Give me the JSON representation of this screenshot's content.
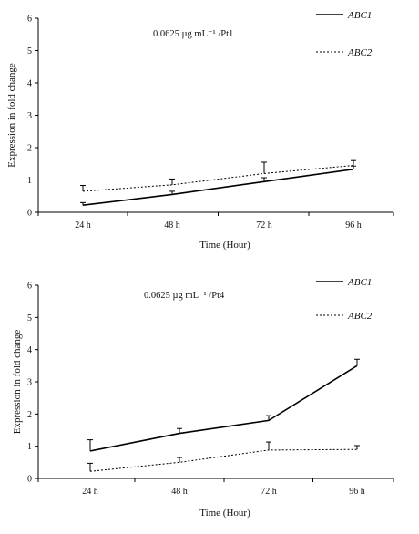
{
  "chart_data": [
    {
      "type": "line",
      "annotation": "0.0625 µg mL⁻¹ /Pt1",
      "xlabel": "Time (Hour)",
      "ylabel": "Expression in fold change",
      "categories": [
        "24 h",
        "48 h",
        "72 h",
        "96 h"
      ],
      "ylim": [
        0,
        6
      ],
      "yticks": [
        "0",
        "1",
        "2",
        "3",
        "4",
        "5",
        "6"
      ],
      "legend_position": "top-right",
      "series": [
        {
          "name": "ABC1",
          "style": "solid",
          "values": [
            0.22,
            0.55,
            0.95,
            1.33
          ],
          "errors": [
            0.08,
            0.1,
            0.12,
            0.1
          ]
        },
        {
          "name": "ABC2",
          "style": "dotted",
          "values": [
            0.65,
            0.85,
            1.2,
            1.45
          ],
          "errors": [
            0.18,
            0.18,
            0.35,
            0.15
          ]
        }
      ]
    },
    {
      "type": "line",
      "annotation": "0.0625 µg mL⁻¹ /Pt4",
      "xlabel": "Time (Hour)",
      "ylabel": "Expression in fold change",
      "categories": [
        "24 h",
        "48 h",
        "72 h",
        "96 h"
      ],
      "ylim": [
        0,
        6
      ],
      "yticks": [
        "0",
        "1",
        "2",
        "3",
        "4",
        "5",
        "6"
      ],
      "legend_position": "top-right",
      "series": [
        {
          "name": "ABC1",
          "style": "solid",
          "values": [
            0.85,
            1.4,
            1.8,
            3.5
          ],
          "errors": [
            0.35,
            0.15,
            0.15,
            0.2
          ]
        },
        {
          "name": "ABC2",
          "style": "dotted",
          "values": [
            0.22,
            0.5,
            0.88,
            0.9
          ],
          "errors": [
            0.25,
            0.15,
            0.25,
            0.12
          ]
        }
      ]
    }
  ]
}
